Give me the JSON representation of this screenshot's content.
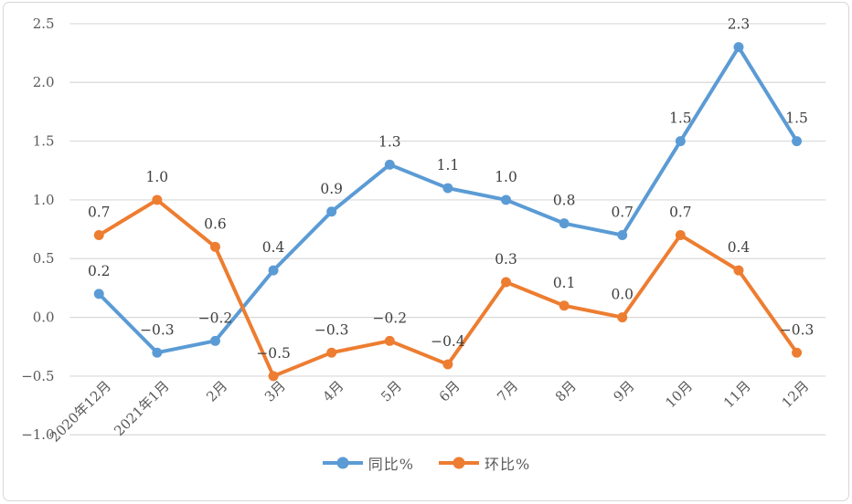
{
  "chart_data": {
    "type": "line",
    "categories": [
      "2020年12月",
      "2021年1月",
      "2月",
      "3月",
      "4月",
      "5月",
      "6月",
      "7月",
      "8月",
      "9月",
      "10月",
      "11月",
      "12月"
    ],
    "series": [
      {
        "name": "同比%",
        "color": "#5B9BD5",
        "values": [
          0.2,
          -0.3,
          -0.2,
          0.4,
          0.9,
          1.3,
          1.1,
          1.0,
          0.8,
          0.7,
          1.5,
          2.3,
          1.5
        ]
      },
      {
        "name": "环比%",
        "color": "#ED7D31",
        "values": [
          0.7,
          1.0,
          0.6,
          -0.5,
          -0.3,
          -0.2,
          -0.4,
          0.3,
          0.1,
          0.0,
          0.7,
          0.4,
          -0.3
        ]
      }
    ],
    "title": "",
    "xlabel": "",
    "ylabel": "",
    "y_axis": {
      "min": -1.0,
      "max": 2.5,
      "step": 0.5,
      "tick_labels": [
        "2.5",
        "2.0",
        "1.5",
        "1.0",
        "0.5",
        "0.0",
        "-0.5",
        "-1.0"
      ]
    },
    "data_labels_shown": true,
    "grid": true,
    "legend_position": "bottom",
    "colors": {
      "gridline": "#D9D9D9",
      "axis_text": "#595959",
      "data_label_text": "#404040",
      "frame_border": "#D7D7D7",
      "background": "#FFFFFF"
    }
  }
}
